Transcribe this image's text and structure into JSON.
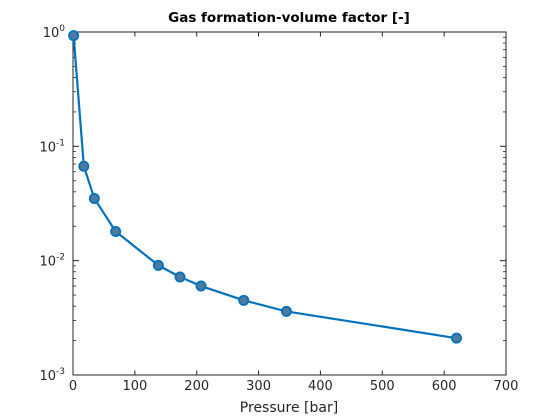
{
  "chart_data": {
    "type": "line",
    "title": "Gas formation-volume factor [-]",
    "xlabel": "Pressure [bar]",
    "ylabel": "",
    "yscale": "log",
    "xlim": [
      0,
      700
    ],
    "ylim": [
      0.001,
      1
    ],
    "xticks": [
      0,
      100,
      200,
      300,
      400,
      500,
      600,
      700
    ],
    "xtick_labels": [
      "0",
      "100",
      "200",
      "300",
      "400",
      "500",
      "600",
      "700"
    ],
    "yticks": [
      0.001,
      0.01,
      0.1,
      1
    ],
    "ytick_labels": [
      {
        "base": "10",
        "exp": "-3"
      },
      {
        "base": "10",
        "exp": "-2"
      },
      {
        "base": "10",
        "exp": "-1"
      },
      {
        "base": "10",
        "exp": "0"
      }
    ],
    "grid": false,
    "series": [
      {
        "x": [
          1,
          17.5,
          34.5,
          69,
          138,
          173,
          207,
          276,
          345,
          620
        ],
        "y": [
          0.93,
          0.067,
          0.035,
          0.018,
          0.0091,
          0.0072,
          0.006,
          0.0045,
          0.0036,
          0.0021
        ]
      }
    ],
    "colors": {
      "line": "#0072bd",
      "marker_face": "#4d7a9e",
      "marker_edge": "#0072bd",
      "axis": "#262626"
    }
  }
}
